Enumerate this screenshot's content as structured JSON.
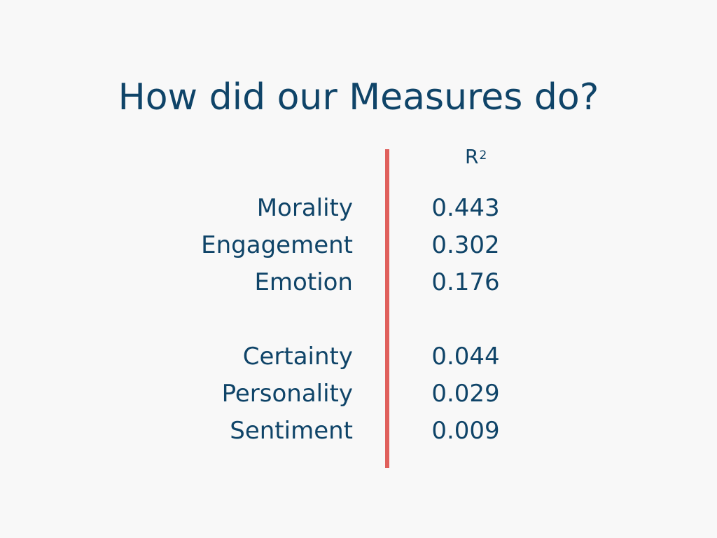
{
  "slide": {
    "title": "How did our Measures do?",
    "column_header": {
      "base": "R",
      "superscript": "2"
    },
    "groups": [
      {
        "rows": [
          {
            "label": "Morality",
            "value": "0.443"
          },
          {
            "label": "Engagement",
            "value": "0.302"
          },
          {
            "label": "Emotion",
            "value": "0.176"
          }
        ]
      },
      {
        "rows": [
          {
            "label": "Certainty",
            "value": "0.044"
          },
          {
            "label": "Personality",
            "value": "0.029"
          },
          {
            "label": "Sentiment",
            "value": "0.009"
          }
        ]
      }
    ]
  },
  "colors": {
    "text": "#0f4468",
    "divider": "#e0605c",
    "background": "#f8f8f8"
  }
}
